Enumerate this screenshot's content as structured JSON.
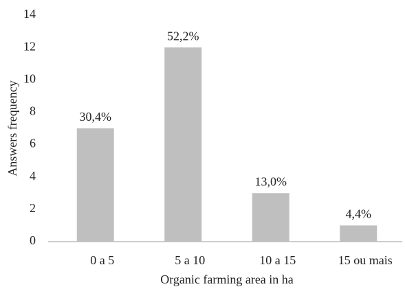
{
  "chart_data": {
    "type": "bar",
    "x_label": "Organic farming area in ha",
    "y_label": "Answers frequency",
    "categories": [
      "0 a 5",
      "5 a 10",
      "10 a 15",
      "15 ou mais"
    ],
    "values": [
      7,
      12,
      3,
      1
    ],
    "annotations": [
      "30,4%",
      "52,2%",
      "13,0%",
      "4,4%"
    ],
    "color": "#bfbfbf",
    "ylim": [
      0,
      14
    ],
    "yticks": [
      0,
      2,
      4,
      6,
      8,
      10,
      12,
      14
    ],
    "grid": false
  }
}
